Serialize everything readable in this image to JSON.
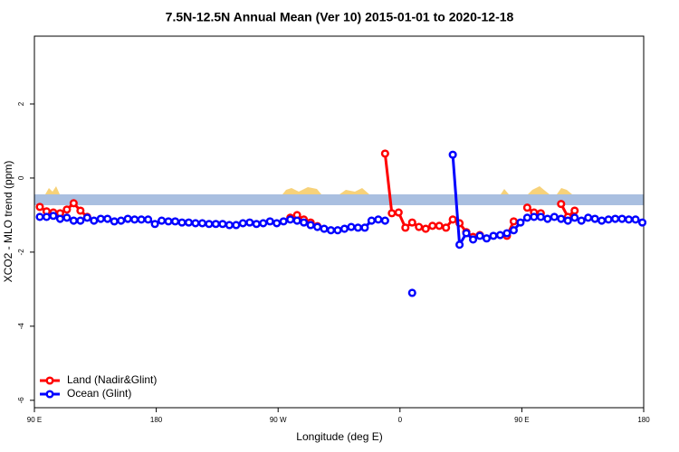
{
  "chart_data": {
    "type": "line",
    "title": "7.5N-12.5N Annual Mean (Ver 10)   2015-01-01 to 2020-12-18",
    "x_label": "Longitude (deg E)",
    "y_label": "XCO2 - MLO trend (ppm)",
    "xlim": [
      90,
      540
    ],
    "ylim": [
      -6.2,
      3.83
    ],
    "xticks": [
      {
        "value": 90,
        "label": "90 E"
      },
      {
        "value": 180,
        "label": "180"
      },
      {
        "value": 270,
        "label": "90 W"
      },
      {
        "value": 360,
        "label": "0"
      },
      {
        "value": 450,
        "label": "90 E"
      },
      {
        "value": 540,
        "label": "180"
      }
    ],
    "yticks": [
      -6,
      -4,
      -2,
      0,
      2
    ],
    "legend": "bottomleft",
    "x": [
      94,
      99,
      104,
      109,
      114,
      119,
      124,
      129,
      134,
      139,
      144,
      149,
      154,
      159,
      164,
      169,
      174,
      179,
      184,
      189,
      194,
      199,
      204,
      209,
      214,
      219,
      224,
      229,
      234,
      239,
      244,
      249,
      254,
      259,
      264,
      269,
      274,
      279,
      284,
      289,
      294,
      299,
      304,
      309,
      314,
      319,
      324,
      329,
      334,
      339,
      344,
      349,
      354,
      359,
      364,
      369,
      374,
      379,
      384,
      389,
      394,
      399,
      404,
      409,
      414,
      419,
      424,
      429,
      434,
      439,
      444,
      449,
      454,
      459,
      464,
      469,
      474,
      479,
      484,
      489,
      494,
      499,
      504,
      509,
      514,
      519,
      524,
      529,
      534,
      539
    ],
    "series": [
      {
        "name": "Land (Nadir&Glint)",
        "color": "#ff0000",
        "values": [
          -0.78,
          -0.9,
          -0.93,
          -0.95,
          -0.85,
          -0.68,
          -0.88,
          -1.05,
          null,
          null,
          null,
          null,
          null,
          null,
          null,
          null,
          null,
          null,
          null,
          null,
          null,
          null,
          null,
          null,
          null,
          null,
          null,
          null,
          null,
          null,
          null,
          null,
          null,
          null,
          null,
          null,
          null,
          -1.07,
          -1.0,
          -1.12,
          -1.2,
          -1.3,
          null,
          null,
          null,
          null,
          null,
          null,
          null,
          null,
          null,
          0.66,
          -0.95,
          -0.93,
          -1.34,
          -1.2,
          -1.32,
          -1.37,
          -1.29,
          -1.29,
          -1.34,
          -1.12,
          -1.22,
          -1.46,
          -1.59,
          -1.54,
          null,
          null,
          null,
          -1.56,
          -1.17,
          null,
          -0.8,
          -0.93,
          -0.95,
          null,
          null,
          -0.7,
          -1.05,
          -0.88,
          null,
          null,
          null,
          null,
          null,
          null,
          null,
          null,
          null,
          null
        ]
      },
      {
        "name": "Ocean (Glint)",
        "color": "#0000ff",
        "values": [
          -1.05,
          -1.05,
          -1.02,
          -1.1,
          -1.07,
          -1.15,
          -1.15,
          -1.07,
          -1.15,
          -1.1,
          -1.1,
          -1.17,
          -1.15,
          -1.1,
          -1.12,
          -1.12,
          -1.12,
          -1.24,
          -1.15,
          -1.17,
          -1.17,
          -1.2,
          -1.2,
          -1.22,
          -1.22,
          -1.24,
          -1.24,
          -1.24,
          -1.27,
          -1.27,
          -1.22,
          -1.2,
          -1.24,
          -1.22,
          -1.17,
          -1.22,
          -1.17,
          -1.12,
          -1.15,
          -1.2,
          -1.27,
          -1.32,
          -1.37,
          -1.41,
          -1.41,
          -1.37,
          -1.32,
          -1.34,
          -1.34,
          -1.15,
          -1.12,
          -1.15,
          null,
          null,
          null,
          -3.1,
          null,
          null,
          null,
          null,
          null,
          0.63,
          -1.8,
          -1.49,
          -1.66,
          -1.56,
          -1.63,
          -1.56,
          -1.54,
          -1.49,
          -1.41,
          -1.2,
          -1.07,
          -1.05,
          -1.05,
          -1.1,
          -1.05,
          -1.1,
          -1.15,
          -1.07,
          -1.15,
          -1.07,
          -1.1,
          -1.15,
          -1.12,
          -1.1,
          -1.1,
          -1.12,
          -1.12,
          -1.2
        ]
      }
    ]
  }
}
